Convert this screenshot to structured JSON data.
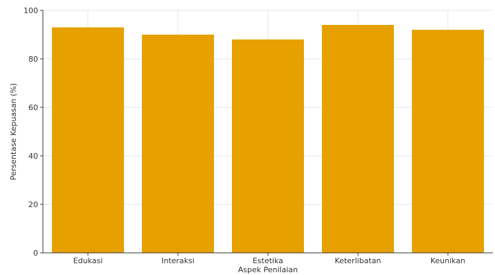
{
  "chart_data": {
    "type": "bar",
    "title": "",
    "xlabel": "Aspek Penilaian",
    "ylabel": "Persentase Kepuasan (%)",
    "categories": [
      "Edukasi",
      "Interaksi",
      "Estetika",
      "Keterlibatan",
      "Keunikan"
    ],
    "values": [
      93,
      90,
      88,
      94,
      92
    ],
    "ylim": [
      0,
      100
    ],
    "yticks": [
      0,
      20,
      40,
      60,
      80,
      100
    ],
    "grid": true,
    "bar_color": "#E6A000",
    "legend": "none"
  }
}
